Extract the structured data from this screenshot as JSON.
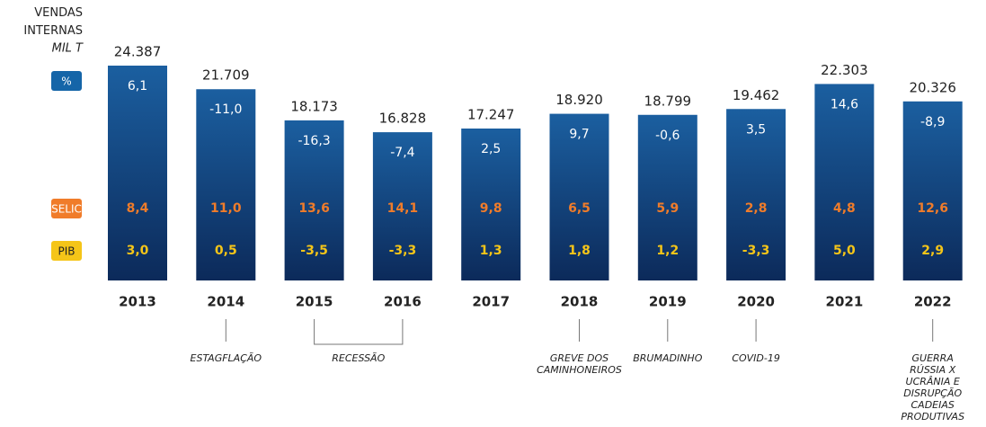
{
  "chart_data": {
    "type": "bar",
    "axis_label": "VENDAS INTERNAS",
    "unit_label": "MIL T",
    "categories": [
      "2013",
      "2014",
      "2015",
      "2016",
      "2017",
      "2018",
      "2019",
      "2020",
      "2021",
      "2022"
    ],
    "values": [
      24387,
      21709,
      18173,
      16828,
      17247,
      18920,
      18799,
      19462,
      22303,
      20326
    ],
    "value_labels": [
      "24.387",
      "21.709",
      "18.173",
      "16.828",
      "17.247",
      "18.920",
      "18.799",
      "19.462",
      "22.303",
      "20.326"
    ],
    "rows": [
      {
        "name": "%",
        "color": "#1565a8",
        "text_color": "#ffffff",
        "values": [
          6.1,
          -11.0,
          -16.3,
          -7.4,
          2.5,
          9.7,
          -0.6,
          3.5,
          14.6,
          -8.9
        ],
        "value_labels": [
          "6,1",
          "-11,0",
          "-16,3",
          "-7,4",
          "2,5",
          "9,7",
          "-0,6",
          "3,5",
          "14,6",
          "-8,9"
        ]
      },
      {
        "name": "SELIC",
        "color": "#f07c2a",
        "text_color": "#f07c2a",
        "values": [
          8.4,
          11.0,
          13.6,
          14.1,
          9.8,
          6.5,
          5.9,
          2.8,
          4.8,
          12.6
        ],
        "value_labels": [
          "8,4",
          "11,0",
          "13,6",
          "14,1",
          "9,8",
          "6,5",
          "5,9",
          "2,8",
          "4,8",
          "12,6"
        ]
      },
      {
        "name": "PIB",
        "color": "#f5c518",
        "text_color": "#f5c518",
        "values": [
          3.0,
          0.5,
          -3.5,
          -3.3,
          1.3,
          1.8,
          1.2,
          -3.3,
          5.0,
          2.9
        ],
        "value_labels": [
          "3,0",
          "0,5",
          "-3,5",
          "-3,3",
          "1,3",
          "1,8",
          "1,2",
          "-3,3",
          "5,0",
          "2,9"
        ]
      }
    ],
    "annotations": [
      {
        "text": "ESTAGFLAÇÃO",
        "at": [
          "2014"
        ]
      },
      {
        "text": "RECESSÃO",
        "at": [
          "2015",
          "2016"
        ]
      },
      {
        "text": "GREVE DOS CAMINHONEIROS",
        "at": [
          "2018"
        ]
      },
      {
        "text": "BRUMADINHO",
        "at": [
          "2019"
        ]
      },
      {
        "text": "COVID-19",
        "at": [
          "2020"
        ]
      },
      {
        "text": "GUERRA RÚSSIA X UCRÂNIA E DISRUPÇÃO CADEIAS PRODUTIVAS",
        "at": [
          "2022"
        ]
      }
    ]
  }
}
